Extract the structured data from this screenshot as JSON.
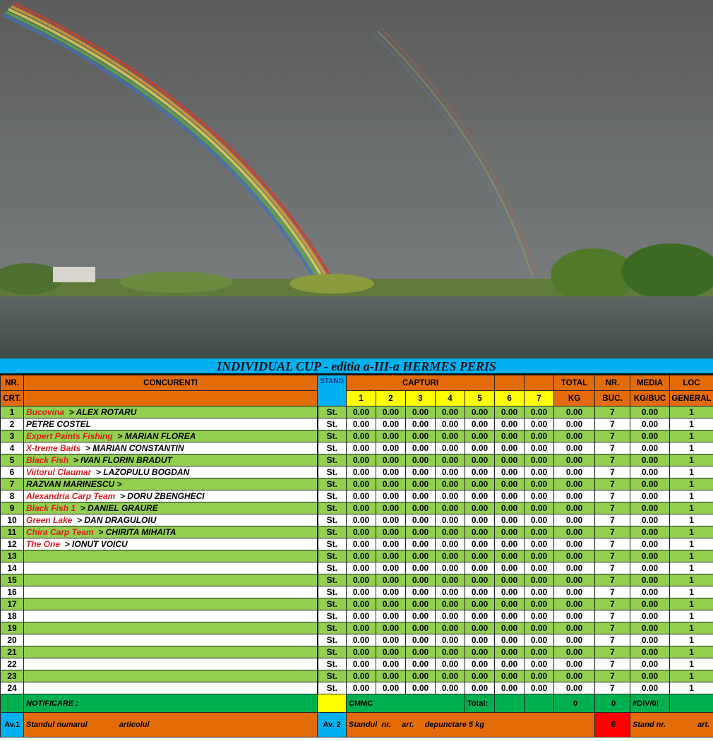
{
  "title": "INDIVIDUAL CUP - editia a-III-a HERMES PERIS",
  "headers": {
    "nr": "NR.",
    "crt": "CRT.",
    "concurenti": "CONCURENTI",
    "stand": "STAND",
    "capturi": "CAPTURI",
    "capture_cols": [
      "1",
      "2",
      "3",
      "4",
      "5",
      "6",
      "7"
    ],
    "total": "TOTAL",
    "kg": "KG",
    "nr_buc": "NR.",
    "buc": "BUC.",
    "media": "MEDIA",
    "kg_buc": "KG/BUC",
    "loc": "LOC",
    "general": "GENERAL"
  },
  "rows": [
    {
      "nr": "1",
      "team": "Bucovina",
      "name": "> ALEX ROTARU"
    },
    {
      "nr": "2",
      "team": "",
      "name": "PETRE COSTEL"
    },
    {
      "nr": "3",
      "team": "Expert Paints Fishing",
      "name": "> MARIAN FLOREA"
    },
    {
      "nr": "4",
      "team": "X-treme Baits",
      "name": "> MARIAN CONSTANTIN"
    },
    {
      "nr": "5",
      "team": "Black Fish",
      "name": "> IVAN FLORIN BRADUT"
    },
    {
      "nr": "6",
      "team": "Viitorul Claumar",
      "name": "> LAZOPULU BOGDAN"
    },
    {
      "nr": "7",
      "team": "",
      "name": "RAZVAN MARINESCU >"
    },
    {
      "nr": "8",
      "team": "Alexandria Carp Team",
      "name": "> DORU ZBENGHECI"
    },
    {
      "nr": "9",
      "team": "Black Fish 1",
      "name": "> DANIEL GRAURE"
    },
    {
      "nr": "10",
      "team": "Green Lake",
      "name": "> DAN DRAGULOIU"
    },
    {
      "nr": "11",
      "team": "Chira Carp Team",
      "name": "> CHIRITA MIHAITA"
    },
    {
      "nr": "12",
      "team": "The One",
      "name": ">  IONUT  VOICU"
    },
    {
      "nr": "13",
      "team": "",
      "name": ""
    },
    {
      "nr": "14",
      "team": "",
      "name": ""
    },
    {
      "nr": "15",
      "team": "",
      "name": ""
    },
    {
      "nr": "16",
      "team": "",
      "name": ""
    },
    {
      "nr": "17",
      "team": "",
      "name": ""
    },
    {
      "nr": "18",
      "team": "",
      "name": ""
    },
    {
      "nr": "19",
      "team": "",
      "name": ""
    },
    {
      "nr": "20",
      "team": "",
      "name": ""
    },
    {
      "nr": "21",
      "team": "",
      "name": ""
    },
    {
      "nr": "22",
      "team": "",
      "name": ""
    },
    {
      "nr": "23",
      "team": "",
      "name": ""
    },
    {
      "nr": "24",
      "team": "",
      "name": ""
    }
  ],
  "row_values": {
    "stand": "St.",
    "capture": "0.00",
    "total": "0.00",
    "buc": "7",
    "media": "0.00",
    "loc": "1"
  },
  "footer": {
    "notificare": "NOTIFICARE :",
    "cmmc": "CMMC",
    "total_label": "Total:",
    "total_kg": "0",
    "total_buc": "0",
    "media": "#DIV/0!",
    "av1": "Av.1",
    "av1_text": "Standul numarul",
    "av1_art": "articolul",
    "av2": "Av. 2",
    "av2_text": "Standul  nr.     art.     depunctare 5 kg",
    "e": "E",
    "stand_nr": "Stand nr.",
    "art": "art."
  },
  "colors": {
    "green": "#92d050",
    "orange": "#e36c09",
    "blue": "#00b0f0",
    "yellow": "#ffff00",
    "footer_green": "#00b050",
    "red": "#ff0000",
    "team_red": "#e31c1c"
  }
}
